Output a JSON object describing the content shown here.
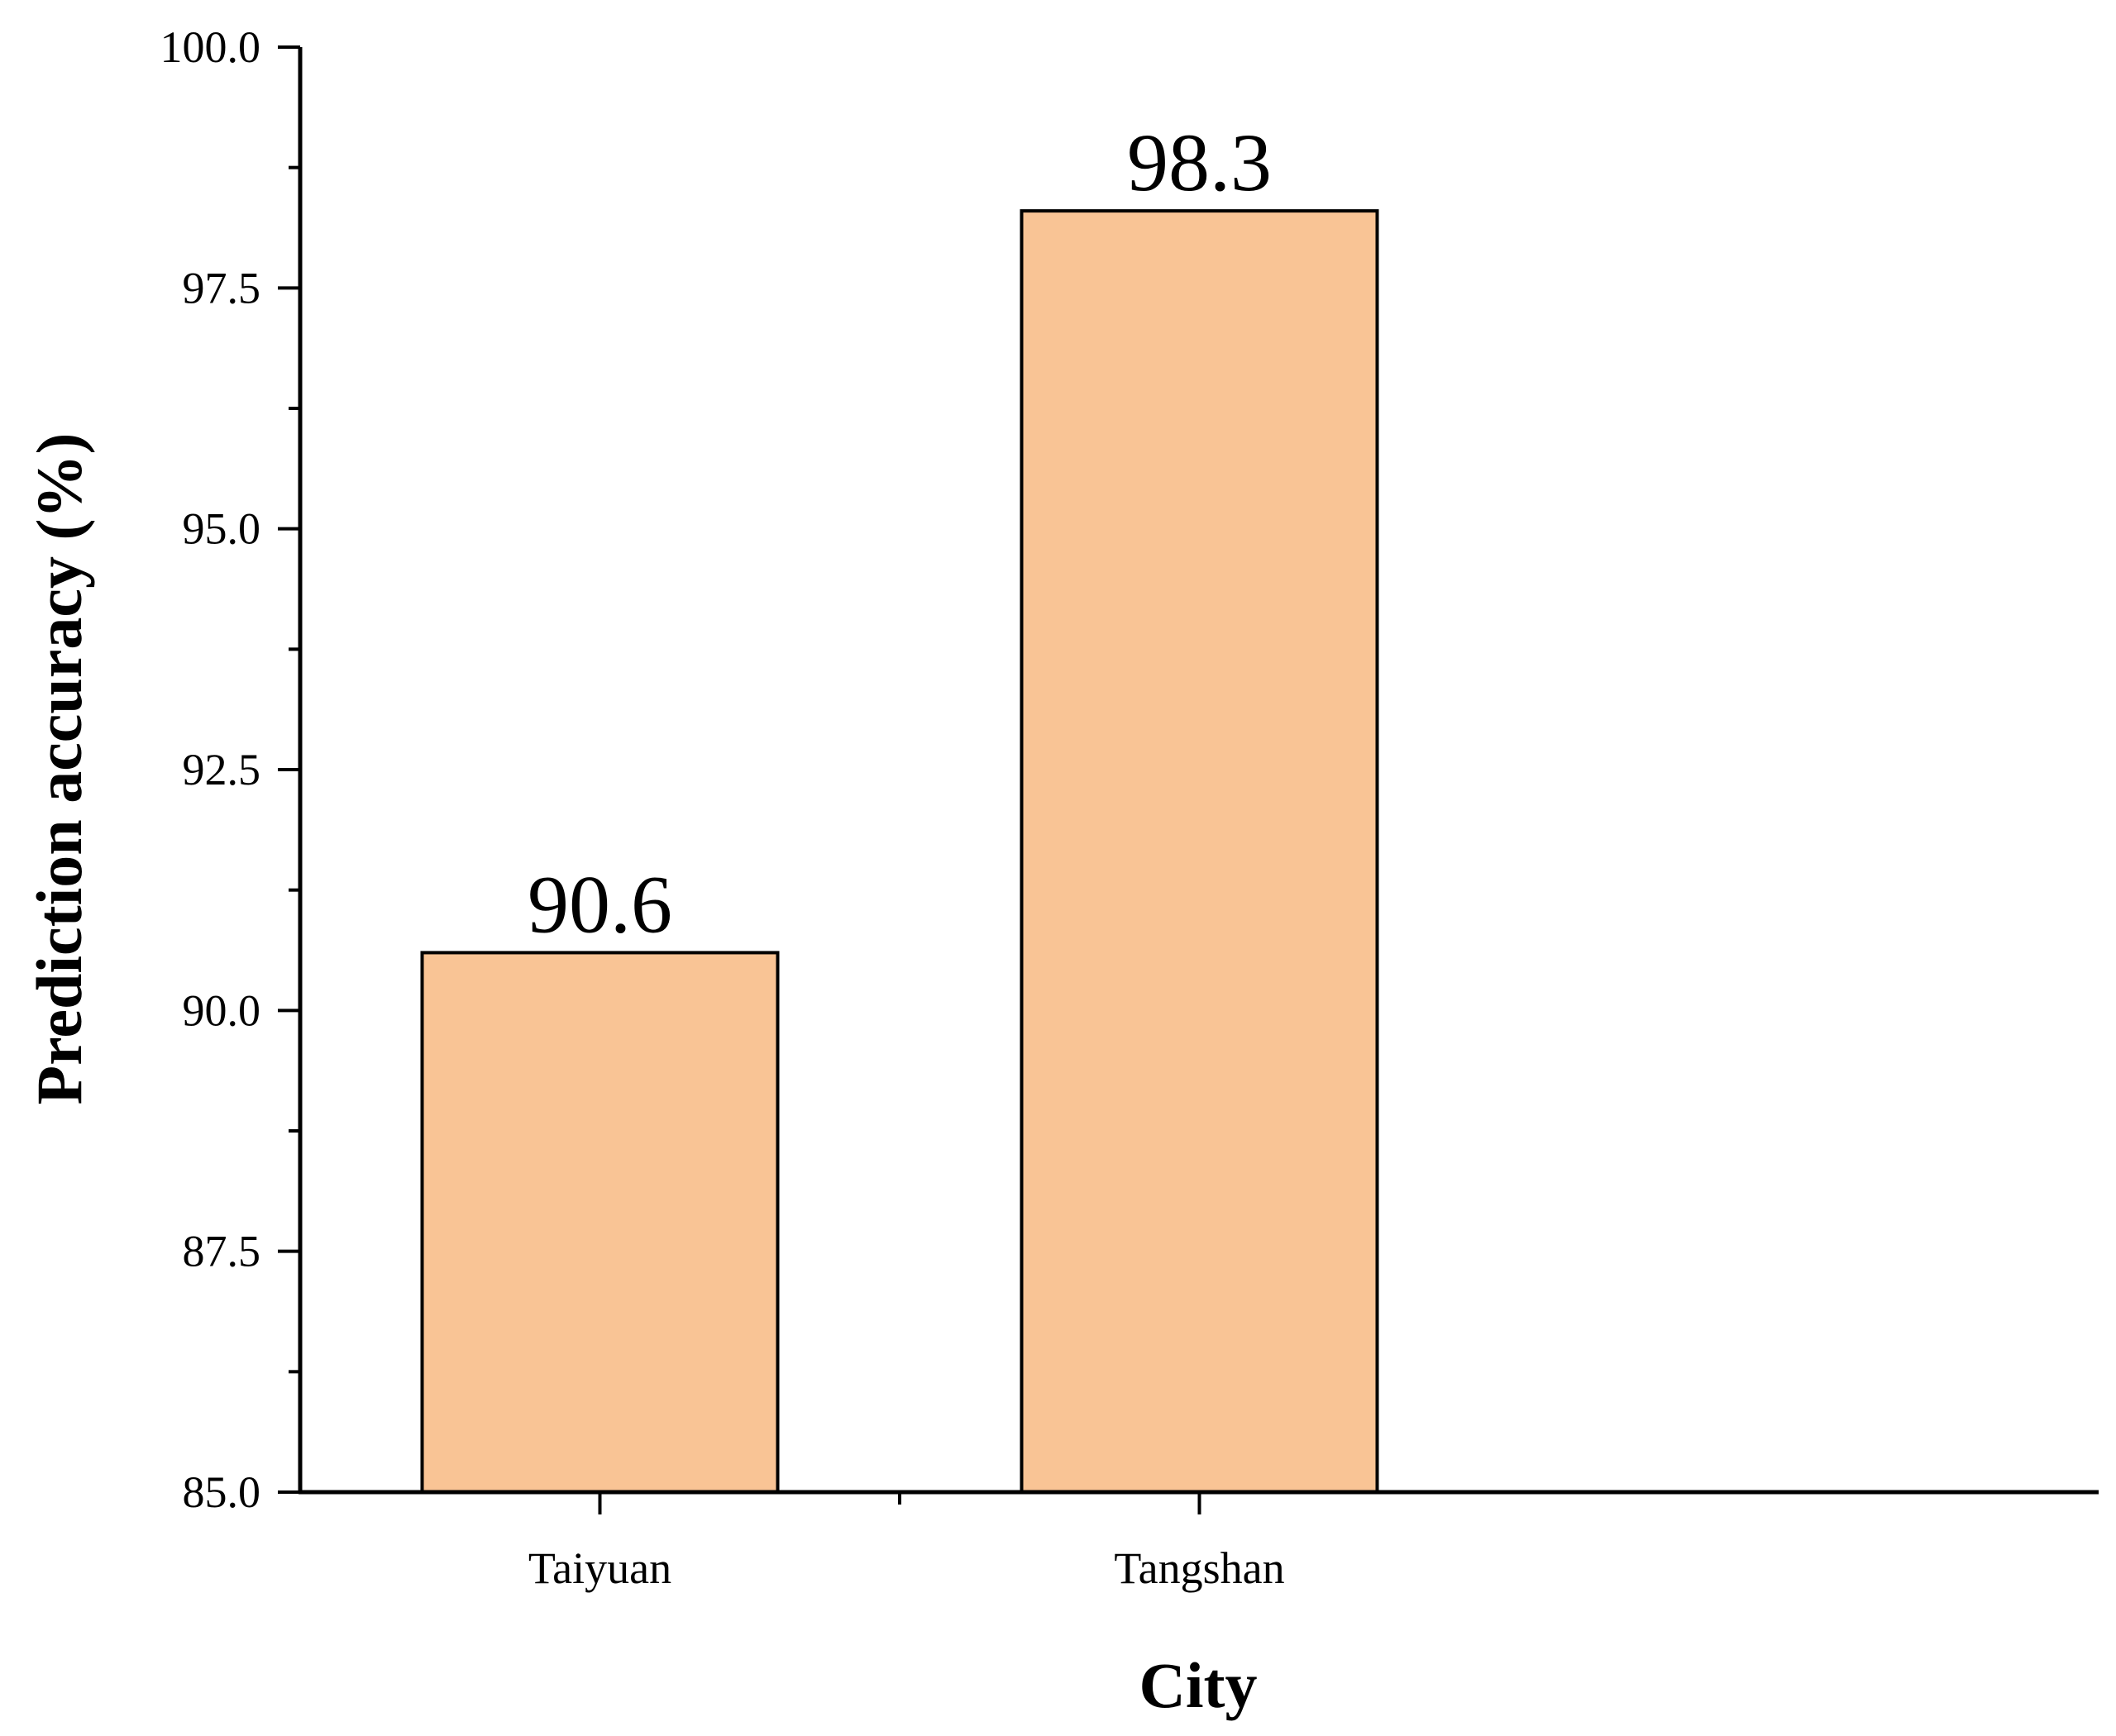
{
  "chart_data": {
    "type": "bar",
    "categories": [
      "Taiyuan",
      "Tangshan"
    ],
    "values": [
      90.6,
      98.3
    ],
    "data_labels": [
      "90.6",
      "98.3"
    ],
    "title": "",
    "xlabel": "City",
    "ylabel": "Prediction accuracy (%)",
    "ylim": [
      85.0,
      100.0
    ],
    "yticks": [
      "85.0",
      "87.5",
      "90.0",
      "92.5",
      "95.0",
      "97.5",
      "100.0"
    ],
    "grid": false,
    "legend": "none",
    "bar_color": "#F9C495",
    "bar_edge_color": "#000000"
  }
}
